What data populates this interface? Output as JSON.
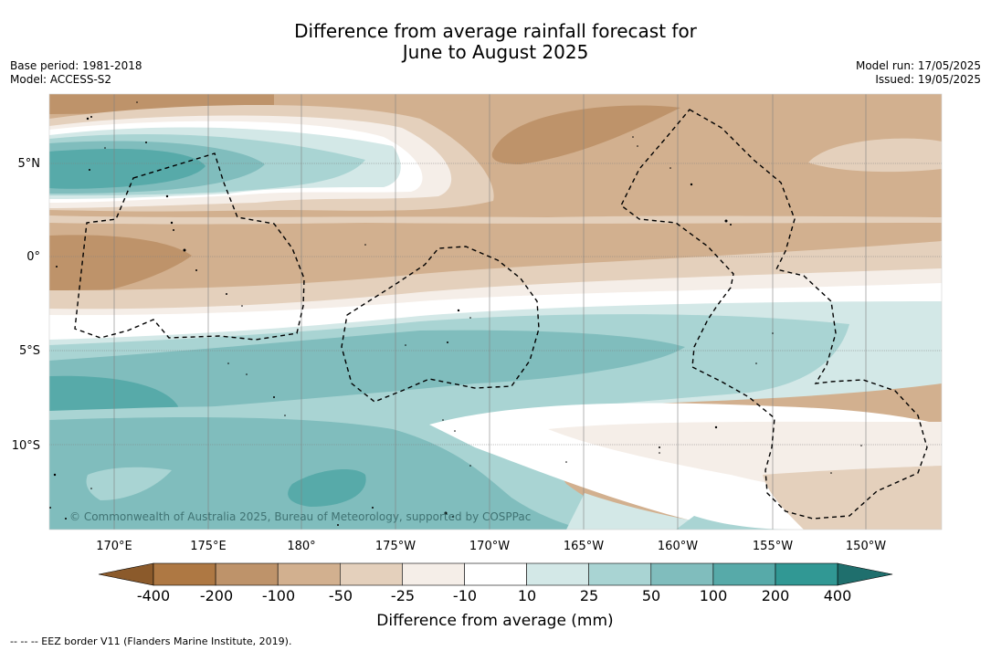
{
  "title": {
    "line1": "Difference from average rainfall forecast for",
    "line2": "June to August 2025"
  },
  "meta_left": {
    "base_period": "Base period: 1981-2018",
    "model": "Model: ACCESS-S2"
  },
  "meta_right": {
    "model_run": "Model run: 17/05/2025",
    "issued": "Issued: 19/05/2025"
  },
  "lat_labels": [
    "5°N",
    "0°",
    "5°S",
    "10°S"
  ],
  "lon_labels": [
    "170°E",
    "175°E",
    "180°",
    "175°W",
    "170°W",
    "165°W",
    "160°W",
    "155°W",
    "150°W"
  ],
  "copyright": "© Commonwealth of Australia 2025, Bureau of Meteorology, supported by COSPPac",
  "colorbar": {
    "title": "Difference from average (mm)",
    "tick_labels": [
      "-400",
      "-200",
      "-100",
      "-50",
      "-25",
      "-10",
      "10",
      "25",
      "50",
      "100",
      "200",
      "400"
    ],
    "colors": [
      "#8b5a2b",
      "#ae7843",
      "#be936a",
      "#d2b08f",
      "#e4d0bc",
      "#f5eee8",
      "#ffffff",
      "#d3e8e7",
      "#a9d4d3",
      "#80bdbd",
      "#57aaa9",
      "#319894",
      "#1f6f6d"
    ]
  },
  "legend_note": "--  --  -- EEZ border V11 (Flanders Marine Institute, 2019)."
}
